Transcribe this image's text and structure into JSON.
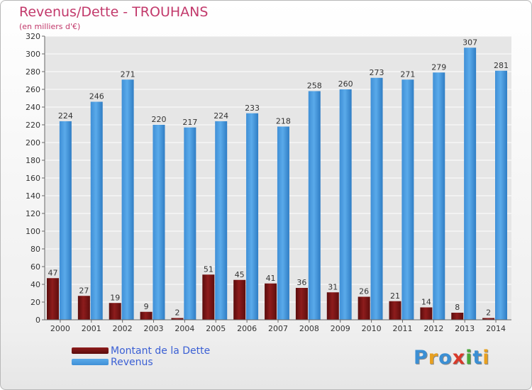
{
  "title": "Revenus/Dette - TROUHANS",
  "subtitle": "(en milliers d'€)",
  "legend": {
    "debt_label": "Montant de la Dette",
    "revenue_label": "Revenus"
  },
  "logo": {
    "text": "Proxiti",
    "letters": [
      "P",
      "r",
      "o",
      "x",
      "i",
      "t",
      "i"
    ],
    "letter_colors": [
      "#3b8fd4",
      "#e8a020",
      "#3b8fd4",
      "#d83a2a",
      "#4aa83a",
      "#3b8fd4",
      "#e8a020"
    ]
  },
  "colors": {
    "debt": "#7a1414",
    "revenue": "#4d9fe0",
    "text": "#c2396b",
    "axis": "#666666",
    "grid": "#ffffff"
  },
  "chart_data": {
    "type": "bar",
    "title": "Revenus/Dette - TROUHANS",
    "subtitle": "(en milliers d'€)",
    "categories": [
      "2000",
      "2001",
      "2002",
      "2003",
      "2004",
      "2005",
      "2006",
      "2007",
      "2008",
      "2009",
      "2010",
      "2011",
      "2012",
      "2013",
      "2014"
    ],
    "series": [
      {
        "name": "Montant de la Dette",
        "values": [
          47,
          27,
          19,
          9,
          2,
          51,
          45,
          41,
          36,
          31,
          26,
          21,
          14,
          8,
          2
        ]
      },
      {
        "name": "Revenus",
        "values": [
          224,
          246,
          271,
          220,
          217,
          224,
          233,
          218,
          258,
          260,
          273,
          271,
          279,
          307,
          281
        ]
      }
    ],
    "ylim": [
      0,
      320
    ],
    "yticks": [
      0,
      20,
      40,
      60,
      80,
      100,
      120,
      140,
      160,
      180,
      200,
      220,
      240,
      260,
      280,
      300,
      320
    ],
    "grid": true,
    "legend_position": "bottom-left"
  }
}
